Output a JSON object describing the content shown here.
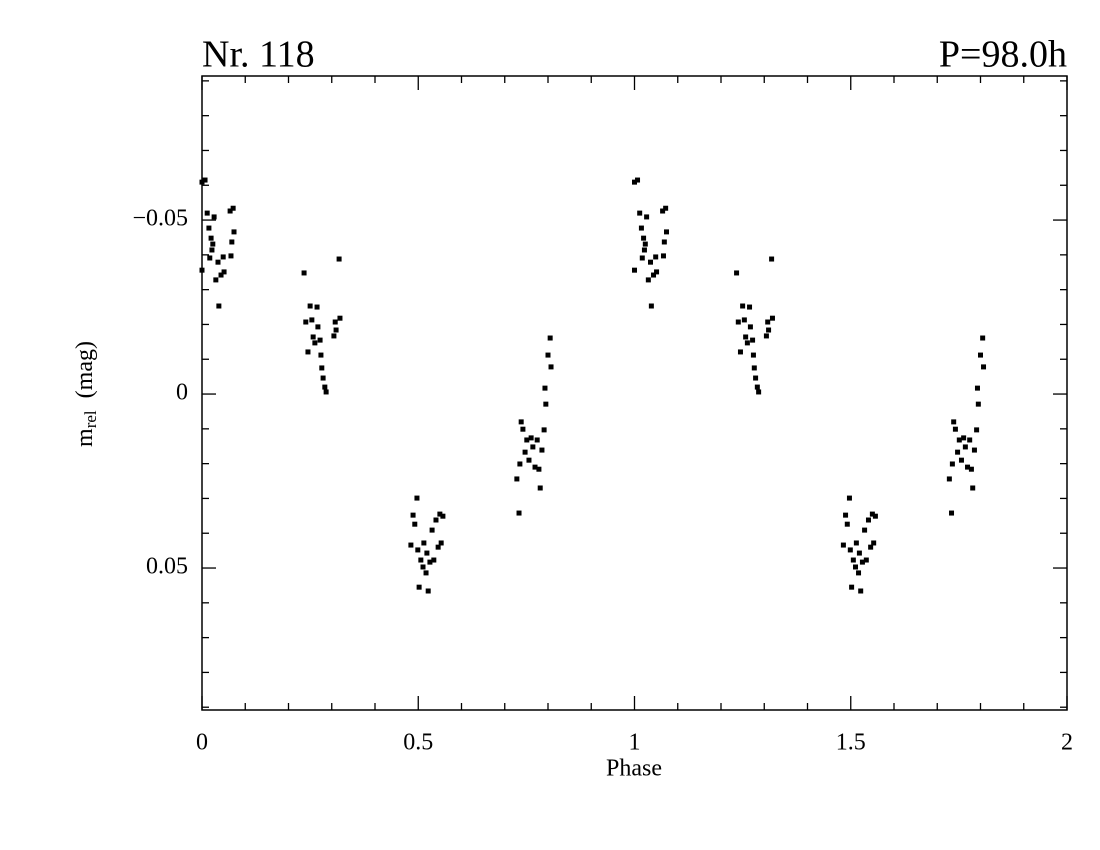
{
  "chart_data": {
    "type": "scatter",
    "title": "Nr.  118",
    "annotation": "P=98.0h",
    "xlabel": "Phase",
    "ylabel": {
      "main": "m",
      "sub": "rel",
      "unit": "(mag)"
    },
    "color": "#000000",
    "xlim": [
      0,
      2
    ],
    "ylim": [
      -0.0914,
      0.0908
    ],
    "y_inverted": true,
    "xticks": [
      0,
      0.5,
      1,
      1.5,
      2
    ],
    "xminorticks": [
      0.1,
      0.2,
      0.3,
      0.4,
      0.6,
      0.7,
      0.8,
      0.9,
      1.1,
      1.2,
      1.3,
      1.4,
      1.6,
      1.7,
      1.8,
      1.9
    ],
    "yticks": [
      {
        "value": -0.05,
        "label": "−0.05"
      },
      0,
      0.05
    ],
    "yminorticks": [
      -0.09,
      -0.08,
      -0.07,
      -0.06,
      -0.04,
      -0.03,
      -0.02,
      -0.01,
      0.01,
      0.02,
      0.03,
      0.04,
      0.06,
      0.07,
      0.08,
      0.09
    ],
    "x": [
      0.0,
      0.007,
      0.012,
      0.016,
      0.021,
      0.023,
      0.018,
      0.025,
      0.028,
      0.032,
      0.037,
      0.039,
      0.044,
      0.049,
      0.051,
      0.065,
      0.069,
      0.072,
      0.067,
      0.074,
      0.0,
      0.236,
      0.24,
      0.245,
      0.25,
      0.254,
      0.257,
      0.261,
      0.266,
      0.268,
      0.273,
      0.275,
      0.277,
      0.28,
      0.284,
      0.287,
      0.305,
      0.31,
      0.317,
      0.319,
      0.308,
      0.483,
      0.488,
      0.492,
      0.497,
      0.499,
      0.502,
      0.506,
      0.511,
      0.513,
      0.518,
      0.52,
      0.523,
      0.527,
      0.532,
      0.536,
      0.541,
      0.546,
      0.55,
      0.553,
      0.557,
      0.728,
      0.733,
      0.735,
      0.738,
      0.742,
      0.747,
      0.751,
      0.756,
      0.761,
      0.765,
      0.77,
      0.775,
      0.779,
      0.782,
      0.786,
      0.791,
      0.793,
      0.795,
      0.8,
      0.805,
      0.807,
      1.0,
      1.007,
      1.012,
      1.016,
      1.021,
      1.023,
      1.018,
      1.025,
      1.028,
      1.032,
      1.037,
      1.039,
      1.044,
      1.049,
      1.051,
      1.065,
      1.069,
      1.072,
      1.067,
      1.074,
      1.0,
      1.236,
      1.24,
      1.245,
      1.25,
      1.254,
      1.257,
      1.261,
      1.266,
      1.268,
      1.273,
      1.275,
      1.277,
      1.28,
      1.284,
      1.287,
      1.305,
      1.31,
      1.317,
      1.319,
      1.308,
      1.483,
      1.488,
      1.492,
      1.497,
      1.499,
      1.502,
      1.506,
      1.511,
      1.513,
      1.518,
      1.52,
      1.523,
      1.527,
      1.532,
      1.536,
      1.541,
      1.546,
      1.55,
      1.553,
      1.557,
      1.728,
      1.733,
      1.735,
      1.738,
      1.742,
      1.747,
      1.751,
      1.756,
      1.761,
      1.765,
      1.77,
      1.775,
      1.779,
      1.782,
      1.786,
      1.791,
      1.793,
      1.795,
      1.8,
      1.805,
      1.807
    ],
    "values": [
      -0.0609,
      -0.0615,
      -0.052,
      -0.0477,
      -0.0448,
      -0.0414,
      -0.0391,
      -0.0431,
      -0.0509,
      -0.0328,
      -0.0379,
      -0.0253,
      -0.0342,
      -0.0394,
      -0.0351,
      -0.0526,
      -0.0437,
      -0.0534,
      -0.0397,
      -0.0466,
      -0.0356,
      -0.0348,
      -0.0207,
      -0.0121,
      -0.0253,
      -0.0213,
      -0.0164,
      -0.0147,
      -0.025,
      -0.0193,
      -0.0155,
      -0.0112,
      -0.0075,
      -0.0046,
      -0.002,
      -0.0006,
      -0.0167,
      -0.0184,
      -0.0388,
      -0.0218,
      -0.0207,
      0.0434,
      0.0348,
      0.0374,
      0.0299,
      0.0448,
      0.0555,
      0.0477,
      0.0497,
      0.0428,
      0.0514,
      0.0457,
      0.0566,
      0.0483,
      0.0391,
      0.0477,
      0.0362,
      0.044,
      0.0345,
      0.0428,
      0.0351,
      0.0244,
      0.0342,
      0.0201,
      0.008,
      0.0101,
      0.0167,
      0.0132,
      0.019,
      0.0126,
      0.0152,
      0.021,
      0.0132,
      0.0216,
      0.027,
      0.0161,
      0.0103,
      -0.0017,
      0.0029,
      -0.0112,
      -0.0161,
      -0.0078,
      -0.0609,
      -0.0615,
      -0.052,
      -0.0477,
      -0.0448,
      -0.0414,
      -0.0391,
      -0.0431,
      -0.0509,
      -0.0328,
      -0.0379,
      -0.0253,
      -0.0342,
      -0.0394,
      -0.0351,
      -0.0526,
      -0.0437,
      -0.0534,
      -0.0397,
      -0.0466,
      -0.0356,
      -0.0348,
      -0.0207,
      -0.0121,
      -0.0253,
      -0.0213,
      -0.0164,
      -0.0147,
      -0.025,
      -0.0193,
      -0.0155,
      -0.0112,
      -0.0075,
      -0.0046,
      -0.002,
      -0.0006,
      -0.0167,
      -0.0184,
      -0.0388,
      -0.0218,
      -0.0207,
      0.0434,
      0.0348,
      0.0374,
      0.0299,
      0.0448,
      0.0555,
      0.0477,
      0.0497,
      0.0428,
      0.0514,
      0.0457,
      0.0566,
      0.0483,
      0.0391,
      0.0477,
      0.0362,
      0.044,
      0.0345,
      0.0428,
      0.0351,
      0.0244,
      0.0342,
      0.0201,
      0.008,
      0.0101,
      0.0167,
      0.0132,
      0.019,
      0.0126,
      0.0152,
      0.021,
      0.0132,
      0.0216,
      0.027,
      0.0161,
      0.0103,
      -0.0017,
      0.0029,
      -0.0112,
      -0.0161,
      -0.0078
    ]
  }
}
